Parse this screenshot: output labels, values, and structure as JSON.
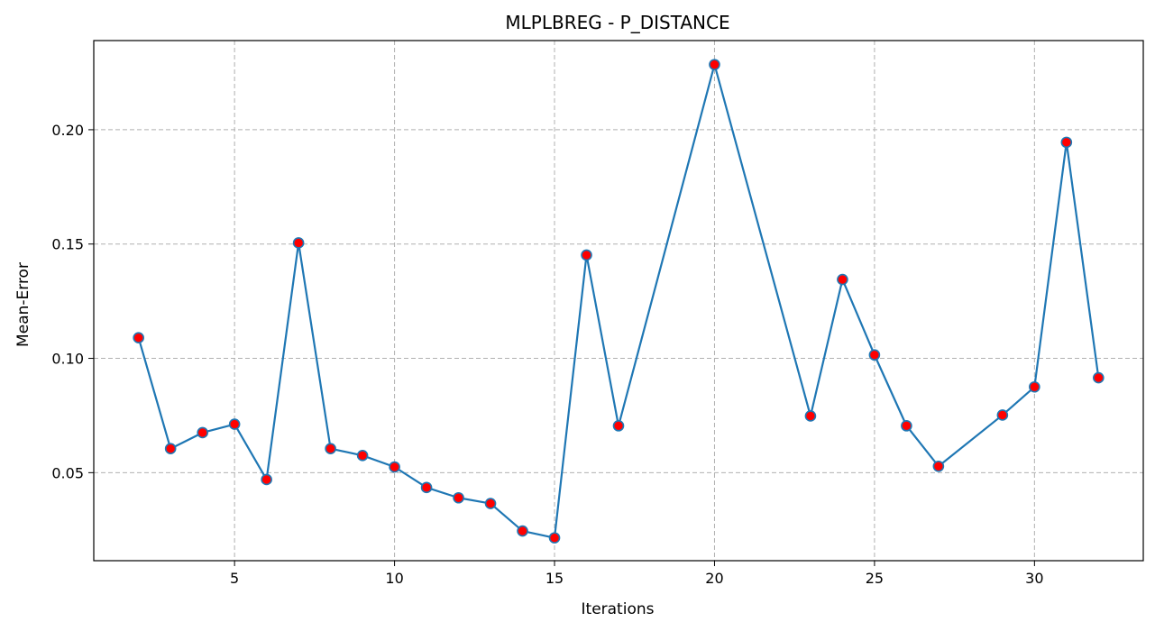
{
  "chart_data": {
    "type": "line",
    "title": "MLPLBREG - P_DISTANCE",
    "xlabel": "Iterations",
    "ylabel": "Mean-Error",
    "xlim": [
      0.6,
      33.4
    ],
    "ylim": [
      0.0115,
      0.239
    ],
    "xticks": [
      5,
      10,
      15,
      20,
      25,
      30
    ],
    "yticks": [
      0.05,
      0.1,
      0.15,
      0.2
    ],
    "ytick_labels": [
      "0.05",
      "0.10",
      "0.15",
      "0.20"
    ],
    "grid": true,
    "series": [
      {
        "x": [
          2,
          3,
          4,
          5,
          6,
          7,
          8,
          9,
          10,
          11,
          12,
          13,
          14,
          15,
          16,
          17,
          20,
          23,
          24,
          25,
          26,
          27,
          29,
          30,
          31,
          32
        ],
        "y": [
          0.109,
          0.0605,
          0.0675,
          0.0712,
          0.047,
          0.1505,
          0.0605,
          0.0575,
          0.0525,
          0.0435,
          0.039,
          0.0365,
          0.0245,
          0.0215,
          0.1452,
          0.0705,
          0.2285,
          0.0748,
          0.1345,
          0.1015,
          0.0705,
          0.0528,
          0.0752,
          0.0875,
          0.1945,
          0.0915
        ],
        "line_color": "#1f77b4",
        "marker_color": "#ff0000"
      }
    ]
  }
}
